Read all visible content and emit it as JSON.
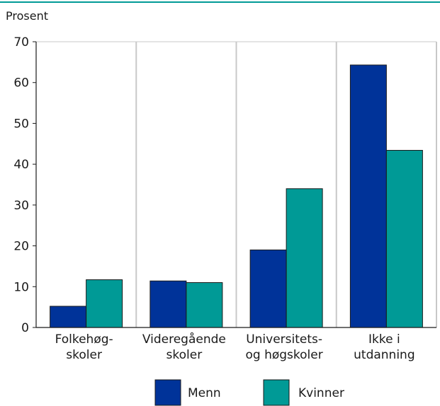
{
  "chart_data": {
    "type": "bar",
    "ylabel": "Prosent",
    "ylim": [
      0,
      70
    ],
    "yticks": [
      0,
      10,
      20,
      30,
      40,
      50,
      60,
      70
    ],
    "grid": true,
    "legend_position": "bottom",
    "categories": [
      [
        "Folkehøg-",
        "skoler"
      ],
      [
        "Videregående",
        "skoler"
      ],
      [
        "Universitets-",
        "og høgskoler"
      ],
      [
        "Ikke i",
        "utdanning"
      ]
    ],
    "series": [
      {
        "name": "Menn",
        "color": "#003399",
        "values": [
          5.2,
          11.4,
          19.0,
          64.3
        ]
      },
      {
        "name": "Kvinner",
        "color": "#009a96",
        "values": [
          11.7,
          11.0,
          34.0,
          43.4
        ]
      }
    ],
    "top_rule_color": "#009a96"
  }
}
